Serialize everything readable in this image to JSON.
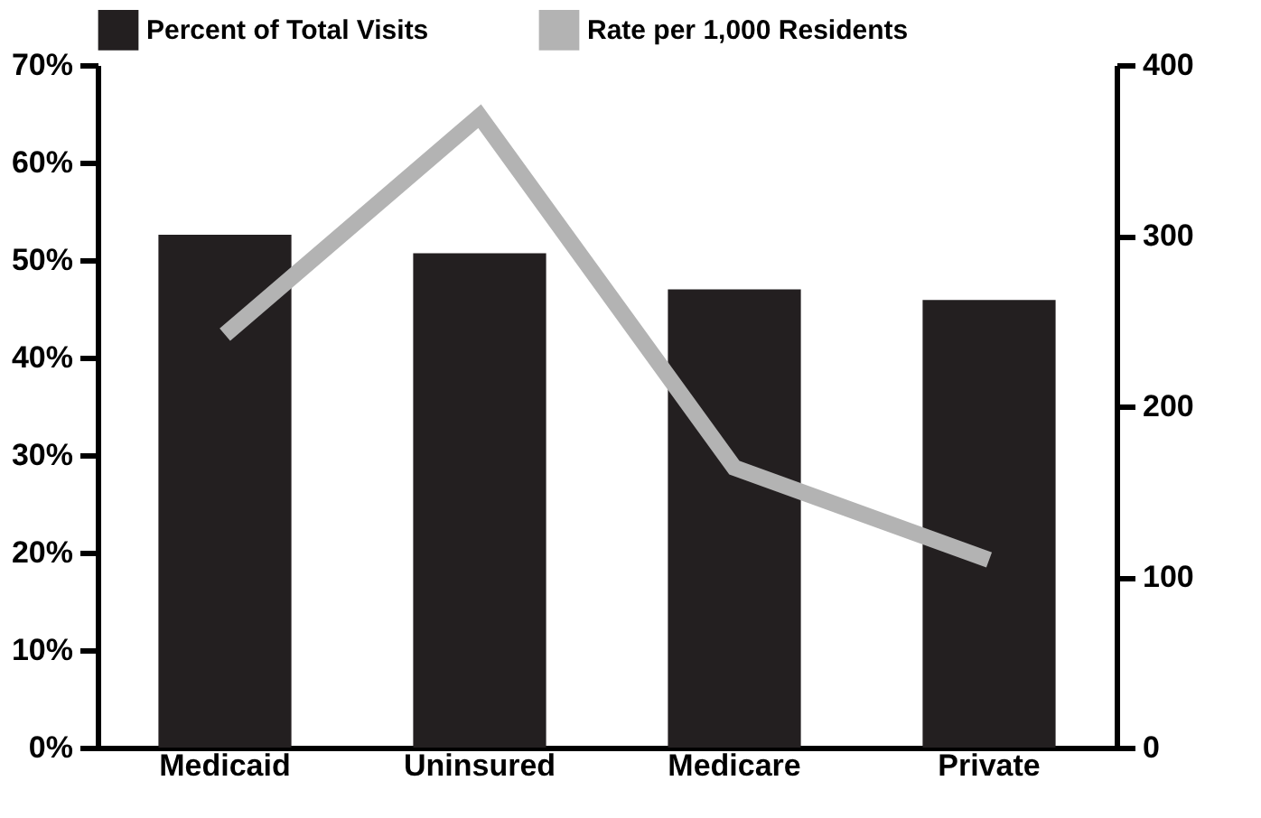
{
  "chart_data": {
    "type": "bar",
    "categories": [
      "Medicaid",
      "Uninsured",
      "Medicare",
      "Private"
    ],
    "series": [
      {
        "name": "Percent of Total Visits",
        "color": "#231f20",
        "values": [
          52.6,
          50.7,
          47.0,
          45.9
        ]
      },
      {
        "name": "Rate per 1,000 Residents",
        "type": "line",
        "axis": "y2",
        "color": "#b3b3b3",
        "values": [
          242,
          370,
          164,
          110
        ]
      }
    ],
    "ylim": [
      0,
      70
    ],
    "yticks": [
      {
        "value": 0,
        "label": "0%"
      },
      {
        "value": 10,
        "label": "10%"
      },
      {
        "value": 20,
        "label": "20%"
      },
      {
        "value": 30,
        "label": "30%"
      },
      {
        "value": 40,
        "label": "40%"
      },
      {
        "value": 50,
        "label": "50%"
      },
      {
        "value": 60,
        "label": "60%"
      },
      {
        "value": 70,
        "label": "70%"
      }
    ],
    "y2lim": [
      0,
      400
    ],
    "y2ticks": [
      0,
      100,
      200,
      300,
      400
    ],
    "legend": "top left",
    "grid": false
  }
}
